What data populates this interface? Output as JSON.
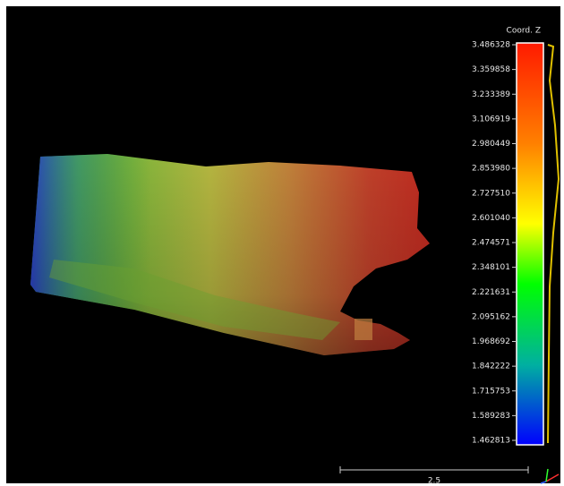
{
  "scalar_bar": {
    "title": "Coord. Z",
    "labels": [
      "3.486328",
      "3.359858",
      "3.233389",
      "3.106919",
      "2.980449",
      "2.853980",
      "2.727510",
      "2.601040",
      "2.474571",
      "2.348101",
      "2.221631",
      "2.095162",
      "1.968692",
      "1.842222",
      "1.715753",
      "1.589283",
      "1.462813"
    ]
  },
  "scale_bar": {
    "label": "2.5"
  }
}
